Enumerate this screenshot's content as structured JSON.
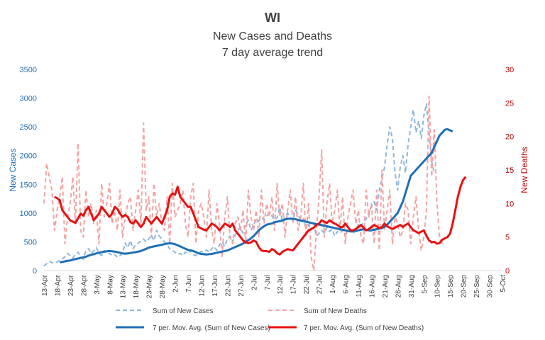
{
  "chart_data": {
    "type": "line",
    "title": "WI",
    "subtitle_lines": [
      "New Cases and Deaths",
      "7 day average trend"
    ],
    "ylabel_left": "New Cases",
    "ylabel_right": "New Deaths",
    "ylim_left": [
      0,
      3500
    ],
    "ylim_right": [
      0,
      30
    ],
    "yticks_left": [
      "0",
      "500",
      "1000",
      "1500",
      "2000",
      "2500",
      "3000",
      "3500"
    ],
    "yticks_right": [
      "0",
      "5",
      "10",
      "15",
      "20",
      "25",
      "30"
    ],
    "x_categories": [
      "13-Apr",
      "18-Apr",
      "23-Apr",
      "28-Apr",
      "3-May",
      "8-May",
      "13-May",
      "18-May",
      "23-May",
      "28-May",
      "2-Jun",
      "7-Jun",
      "12-Jun",
      "17-Jun",
      "22-Jun",
      "27-Jun",
      "2-Jul",
      "7-Jul",
      "12-Jul",
      "17-Jul",
      "22-Jul",
      "27-Jul",
      "1-Aug",
      "6-Aug",
      "11-Aug",
      "16-Aug",
      "21-Aug",
      "26-Aug",
      "31-Aug",
      "5-Sep",
      "10-Sep",
      "15-Sep",
      "20-Sep",
      "25-Sep",
      "30-Sep",
      "5-Oct"
    ],
    "grid": false,
    "legend_position": "bottom",
    "colors": {
      "cases": "#1f6fb5",
      "cases_raw": "#8db7df",
      "deaths": "#e81010",
      "deaths_raw": "#f4a3a3"
    },
    "series": [
      {
        "name": "Sum of New Cases",
        "axis": "left",
        "style": "dashed",
        "x_start": 0,
        "values": [
          80,
          120,
          160,
          140,
          130,
          150,
          180,
          200,
          240,
          300,
          260,
          220,
          280,
          320,
          240,
          200,
          350,
          380,
          300,
          340,
          400,
          300,
          260,
          350,
          290,
          300,
          260,
          280,
          230,
          260,
          300,
          480,
          400,
          520,
          380,
          450,
          480,
          520,
          550,
          500,
          550,
          620,
          520,
          700,
          600,
          550,
          500,
          450,
          380,
          350,
          320,
          280,
          300,
          260,
          320,
          300,
          350,
          280,
          260,
          300,
          330,
          320,
          360,
          320,
          380,
          420,
          350,
          450,
          500,
          420,
          550,
          600,
          500,
          620,
          700,
          750,
          650,
          800,
          880,
          700,
          780,
          900,
          860,
          920,
          880,
          950,
          1000,
          950,
          880,
          920,
          1100,
          850,
          950,
          1000,
          900,
          880,
          1050,
          980,
          850,
          900,
          750,
          800,
          700,
          820,
          600,
          650,
          700,
          650,
          750,
          680,
          720,
          600,
          680,
          650,
          700,
          620,
          680,
          720,
          650,
          700,
          800,
          750,
          850,
          900,
          1000,
          1100,
          1200,
          1050,
          1400,
          1600,
          1800,
          2200,
          2500,
          2300,
          1700,
          1400,
          1800,
          2000,
          1700,
          2200,
          2500,
          2800,
          2400,
          2600,
          2300,
          2700,
          2900,
          2400,
          1900,
          1700
        ]
      },
      {
        "name": "Sum of New Deaths",
        "axis": "right",
        "style": "dashed",
        "x_start": 0,
        "values": [
          10,
          16,
          14,
          12,
          6,
          9,
          11,
          14,
          4,
          8,
          10,
          14,
          7,
          19,
          6,
          5,
          12,
          8,
          10,
          7,
          9,
          4,
          13,
          8,
          10,
          13,
          7,
          9,
          6,
          12,
          5,
          8,
          10,
          11,
          6,
          9,
          12,
          7,
          22,
          9,
          11,
          5,
          13,
          8,
          10,
          7,
          6,
          11,
          4,
          13,
          8,
          9,
          10,
          12,
          7,
          5,
          11,
          13,
          4,
          9,
          10,
          8,
          5,
          12,
          6,
          4,
          10,
          7,
          2,
          8,
          11,
          5,
          4,
          7,
          8,
          6,
          9,
          4,
          12,
          8,
          6,
          9,
          5,
          12,
          7,
          10,
          8,
          11,
          6,
          13,
          8,
          10,
          5,
          9,
          12,
          7,
          11,
          6,
          8,
          13,
          5,
          10,
          2,
          0,
          6,
          11,
          18,
          5,
          10,
          13,
          7,
          9,
          12,
          6,
          11,
          4,
          8,
          10,
          12,
          7,
          9,
          5,
          4,
          12,
          8,
          10,
          4,
          12,
          3,
          15,
          6,
          9,
          12,
          4,
          8,
          7,
          5,
          6,
          10,
          9,
          4,
          8,
          11,
          6,
          3,
          5,
          9,
          26,
          14,
          21,
          10,
          5,
          4
        ]
      },
      {
        "name": "7 per. Mov. Avg. (Sum of New Cases)",
        "axis": "left",
        "style": "solid",
        "x_start": 6,
        "values": [
          145,
          150,
          160,
          170,
          175,
          190,
          200,
          210,
          220,
          230,
          240,
          260,
          275,
          285,
          300,
          310,
          320,
          330,
          335,
          340,
          335,
          330,
          320,
          310,
          300,
          295,
          300,
          305,
          315,
          320,
          330,
          340,
          360,
          380,
          400,
          410,
          420,
          430,
          440,
          450,
          460,
          470,
          475,
          470,
          460,
          440,
          420,
          400,
          380,
          360,
          350,
          340,
          320,
          300,
          290,
          285,
          280,
          285,
          290,
          300,
          310,
          320,
          330,
          340,
          350,
          370,
          390,
          410,
          430,
          450,
          470,
          500,
          530,
          560,
          600,
          650,
          700,
          740,
          770,
          800,
          810,
          820,
          840,
          850,
          860,
          870,
          890,
          900,
          905,
          900,
          895,
          880,
          870,
          860,
          850,
          840,
          830,
          820,
          810,
          800,
          790,
          780,
          770,
          760,
          750,
          740,
          730,
          720,
          710,
          700,
          690,
          680,
          680,
          690,
          700,
          710,
          720,
          710,
          700,
          700,
          710,
          720,
          730,
          740,
          760,
          800,
          850,
          900,
          950,
          1000,
          1100,
          1200,
          1350,
          1500,
          1650,
          1700,
          1750,
          1800,
          1850,
          1900,
          1950,
          2000,
          2050,
          2150,
          2250,
          2350,
          2400,
          2450,
          2460,
          2440,
          2420
        ]
      },
      {
        "name": "7 per. Mov. Avg. (Sum of New Deaths)",
        "axis": "right",
        "style": "solid",
        "x_start": 4,
        "values": [
          11,
          10.8,
          10.5,
          9,
          8.5,
          8,
          7.5,
          7.3,
          7.1,
          7.8,
          8.5,
          8.2,
          9,
          9.5,
          8.5,
          7.5,
          8,
          8.5,
          9.5,
          9,
          8.5,
          8,
          8.5,
          9.5,
          9.2,
          8.5,
          8,
          8.3,
          8,
          7.2,
          7,
          7.5,
          7,
          6.5,
          7,
          8,
          7.5,
          7,
          7.5,
          8,
          7.5,
          7,
          8,
          9,
          11,
          11.5,
          11.3,
          12.5,
          11,
          10.5,
          10,
          9.5,
          9.5,
          8.5,
          7.5,
          6.5,
          6.3,
          6.1,
          6,
          6.5,
          7,
          6.8,
          6.5,
          6,
          6.5,
          7,
          6.8,
          6.5,
          7,
          6,
          5.5,
          5,
          4.5,
          4.2,
          4.1,
          4.2,
          4.5,
          4.3,
          3.5,
          3,
          2.9,
          2.9,
          2.8,
          3.2,
          3,
          2.6,
          2.4,
          2.8,
          3,
          3.2,
          3.1,
          3,
          3.5,
          4,
          4.5,
          5,
          5.5,
          6,
          6.2,
          6.4,
          6.8,
          7,
          7.5,
          7.3,
          7.1,
          7.5,
          7.2,
          7,
          6.8,
          6.5,
          6.5,
          7,
          6.5,
          6,
          6,
          6.2,
          6.5,
          6.8,
          6.4,
          6,
          6.2,
          6.5,
          6.8,
          6.6,
          6.3,
          6.5,
          7,
          6.6,
          6.4,
          6.2,
          6.4,
          6.6,
          6.8,
          6.5,
          6.8,
          7,
          6.5,
          6,
          5.8,
          5.6,
          5.8,
          6,
          5.2,
          4.5,
          4.2,
          4.3,
          4,
          4.1,
          4.6,
          4.8,
          5,
          5.5,
          7,
          9,
          11,
          12.5,
          13.5,
          14
        ]
      }
    ]
  },
  "legend": {
    "items": [
      "Sum of New Cases",
      "Sum of New Deaths",
      "7 per. Mov. Avg. (Sum of New Cases)",
      "7 per. Mov. Avg. (Sum of New Deaths)"
    ]
  }
}
